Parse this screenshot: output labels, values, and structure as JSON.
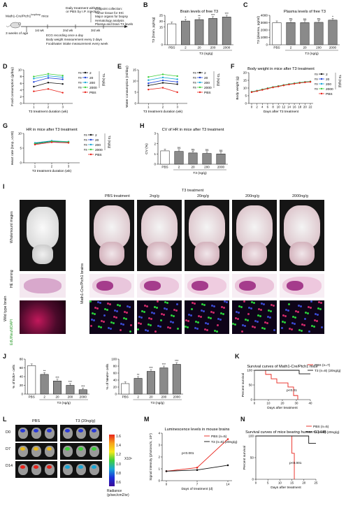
{
  "panels": {
    "A": {
      "letter": "A",
      "mice_label": "Math1-Cre/Ptch1",
      "mice_sup": "loxp/loxp",
      "mice_suffix": " mice",
      "age_label": "3 weeks of age",
      "treatment": [
        "Daily treatment with T3",
        "or PBS by I.P. injection"
      ],
      "weeks": [
        "1st wk",
        "2nd wk",
        "3rd wk"
      ],
      "endpoint_title": "Endpoint collection:",
      "endpoint_items": [
        "Tumor tissue for IHC",
        "Major organs for biopsy",
        "Hematology analysis",
        "Plasma and brain T3 levels"
      ],
      "notes": [
        "ECG recording once a day",
        "Body weight measurement every 2 days",
        "Food/water intake measurement every week"
      ]
    },
    "B": {
      "letter": "B",
      "title": "Brain levels of free T3"
    },
    "C": {
      "letter": "C",
      "title": "Plasma levels of free T3"
    },
    "D": {
      "letter": "D"
    },
    "E": {
      "letter": "E"
    },
    "F": {
      "letter": "F",
      "title": "Body weight in mice after T3 treatment"
    },
    "G": {
      "letter": "G",
      "title": "HR in mice after T3 treatment"
    },
    "H": {
      "letter": "H",
      "title": "CV of HR in mice after T3 treatment"
    },
    "I": {
      "letter": "I",
      "top_labels": [
        "PBS treatment",
        "2ng/g",
        "20ng/g",
        "200ng/g",
        "2000ng/g"
      ],
      "t3_header": "T3 treatment",
      "row_labels": [
        "Wholemount images",
        "HE staining",
        "EdU/NeuN/DAPI"
      ],
      "left_side": "Wild type brain",
      "right_side": "Math1-Cre/Ptch1 brains"
    },
    "J": {
      "letter": "J"
    },
    "K": {
      "letter": "K"
    },
    "L": {
      "letter": "L",
      "groups": [
        "PBS",
        "T3 (20ng/g)"
      ],
      "days": [
        "D0",
        "D7",
        "D14"
      ],
      "scale": [
        "1.6",
        "1.4",
        "1.2",
        "1.0",
        "0.8",
        "0.6"
      ],
      "scale_unit": "X10⁶",
      "radiance": [
        "Radiance",
        "(p/sec/cm2/sr)"
      ]
    },
    "M": {
      "letter": "M"
    },
    "N": {
      "letter": "N"
    }
  },
  "chart_data": [
    {
      "id": "B",
      "type": "bar",
      "title": "Brain levels of free T3",
      "ylabel": "T3 (brain, pg/mg)",
      "xlabel": "T3 (ng/g)",
      "categories": [
        "PBS",
        "2",
        "20",
        "200",
        "2000"
      ],
      "values": [
        17.8,
        20.2,
        21.4,
        22.4,
        23.6
      ],
      "sig": [
        "",
        "*",
        "**",
        "***",
        "***"
      ],
      "ylim": [
        0,
        25
      ],
      "yticks": [
        0,
        15,
        20,
        25
      ]
    },
    {
      "id": "C",
      "type": "bar",
      "title": "Plasma levels of free T3",
      "ylabel": "T3 (plasma, pg/ml)",
      "xlabel": "T3 (ng/g)",
      "categories": [
        "PBS",
        "2",
        "20",
        "200",
        "2000"
      ],
      "values": [
        3000,
        3030,
        3010,
        3050,
        3350
      ],
      "sig": [
        "",
        "ns",
        "ns",
        "ns",
        "*"
      ],
      "ylim": [
        0,
        4000
      ],
      "yticks": [
        0,
        1000,
        2000,
        3000,
        4000
      ]
    },
    {
      "id": "D",
      "type": "line",
      "ylabel": "Food consumption (g/day)",
      "xlabel": "T3 treatment duration (wk)",
      "x": [
        1,
        2,
        3
      ],
      "ylim": [
        0,
        10
      ],
      "yticks": [
        0,
        2,
        4,
        6,
        8,
        10
      ],
      "legend_title": "T3 (ng/g)",
      "series": [
        {
          "name": "2",
          "sig": "ns",
          "values": [
            5.0,
            6.2,
            5.8
          ]
        },
        {
          "name": "20",
          "sig": "ns",
          "values": [
            6.4,
            7.6,
            7.2
          ]
        },
        {
          "name": "200",
          "sig": "ns",
          "values": [
            7.4,
            8.2,
            7.8
          ]
        },
        {
          "name": "2000",
          "sig": "ns",
          "values": [
            8.0,
            8.8,
            8.3
          ]
        },
        {
          "name": "PBS",
          "sig": "",
          "values": [
            3.6,
            4.3,
            3.2
          ]
        }
      ]
    },
    {
      "id": "E",
      "type": "line",
      "ylabel": "Water consumption (ml/day)",
      "xlabel": "T3 treatment duration (wk)",
      "x": [
        1,
        2,
        3
      ],
      "ylim": [
        0,
        15
      ],
      "yticks": [
        0,
        5,
        10,
        15
      ],
      "legend_title": "T3 (ng/g)",
      "series": [
        {
          "name": "2",
          "sig": "ns",
          "values": [
            8.0,
            9.2,
            8.6
          ]
        },
        {
          "name": "20",
          "sig": "ns",
          "values": [
            9.0,
            10.3,
            9.6
          ]
        },
        {
          "name": "200",
          "sig": "ns",
          "values": [
            10.4,
            11.6,
            10.8
          ]
        },
        {
          "name": "2000",
          "sig": "ns",
          "values": [
            11.8,
            13.0,
            12.2
          ]
        },
        {
          "name": "PBS",
          "sig": "",
          "values": [
            6.2,
            7.0,
            5.0
          ]
        }
      ]
    },
    {
      "id": "F",
      "type": "line",
      "title": "Body weight in mice after T3 treatment",
      "ylabel": "Body weight (g)",
      "xlabel": "Days after T3 treatment",
      "x": [
        0,
        2,
        4,
        6,
        8,
        10,
        12,
        14,
        16,
        18,
        20,
        22
      ],
      "xticks": [
        0,
        2,
        4,
        6,
        8,
        10,
        12,
        14,
        16,
        18,
        20,
        22
      ],
      "ylim": [
        0,
        20
      ],
      "yticks": [
        0,
        5,
        10,
        15,
        20
      ],
      "legend_title": "T3 (ng/g)",
      "series": [
        {
          "name": "2",
          "sig": "ns",
          "values": [
            7.5,
            8.2,
            9.0,
            9.8,
            10.6,
            11.2,
            11.9,
            12.5,
            13.0,
            13.5,
            13.9,
            14.2
          ]
        },
        {
          "name": "20",
          "sig": "ns",
          "values": [
            7.4,
            8.1,
            8.9,
            9.7,
            10.5,
            11.1,
            11.8,
            12.4,
            12.9,
            13.4,
            13.8,
            14.1
          ]
        },
        {
          "name": "200",
          "sig": "ns",
          "values": [
            7.6,
            8.3,
            9.1,
            9.9,
            10.7,
            11.3,
            12.0,
            12.6,
            13.1,
            13.6,
            14.0,
            14.3
          ]
        },
        {
          "name": "2000",
          "sig": "ns",
          "values": [
            7.5,
            8.2,
            9.0,
            9.8,
            10.6,
            11.2,
            11.9,
            12.5,
            13.0,
            13.5,
            13.9,
            14.2
          ]
        },
        {
          "name": "PBS",
          "sig": "",
          "values": [
            7.3,
            8.0,
            8.8,
            9.6,
            10.4,
            11.0,
            11.7,
            12.3,
            12.8,
            13.3,
            13.7,
            14.0
          ]
        }
      ]
    },
    {
      "id": "G",
      "type": "line",
      "title": "HR in mice after T3 treatment",
      "ylabel": "Heart rate (bmp, x100)",
      "xlabel": "T3 treatment duration (wk)",
      "x": [
        1,
        2,
        3
      ],
      "ylim": [
        0,
        10
      ],
      "yticks": [
        0,
        5,
        10
      ],
      "legend_title": "T3 (ng/g)",
      "series": [
        {
          "name": "2",
          "sig": "ns",
          "values": [
            6.6,
            7.4,
            7.1
          ]
        },
        {
          "name": "20",
          "sig": "ns",
          "values": [
            6.4,
            7.2,
            7.0
          ]
        },
        {
          "name": "200",
          "sig": "ns",
          "values": [
            6.8,
            7.5,
            7.2
          ]
        },
        {
          "name": "2000",
          "sig": "ns",
          "values": [
            6.5,
            7.3,
            7.1
          ]
        },
        {
          "name": "PBS",
          "sig": "",
          "values": [
            6.2,
            7.0,
            6.8
          ]
        }
      ]
    },
    {
      "id": "H",
      "type": "bar",
      "title": "CV of HR in mice after T3 treatment",
      "ylabel": "CV (%)",
      "xlabel": "T3 (ng/g)",
      "categories": [
        "PBS",
        "2",
        "20",
        "200",
        "2000"
      ],
      "values": [
        1.3,
        1.25,
        1.1,
        1.05,
        1.0
      ],
      "sig": [
        "",
        "ns",
        "ns",
        "ns",
        "ns"
      ],
      "ylim": [
        0,
        3
      ],
      "yticks": [
        0,
        1,
        2,
        3
      ]
    },
    {
      "id": "J1",
      "type": "bar",
      "ylabel": "% of EdU+ cells",
      "xlabel": "T3 (ng/g)",
      "categories": [
        "PBS",
        "2",
        "20",
        "200",
        "2000"
      ],
      "values": [
        65,
        45,
        30,
        20,
        10
      ],
      "sig": [
        "",
        "**",
        "***",
        "***",
        "***"
      ],
      "ylim": [
        0,
        80
      ],
      "yticks": [
        0,
        20,
        40,
        60,
        80
      ]
    },
    {
      "id": "J2",
      "type": "bar",
      "ylabel": "% of NeuN+ cells",
      "xlabel": "T3 (ng/g)",
      "categories": [
        "PBS",
        "2",
        "20",
        "200",
        "2000"
      ],
      "values": [
        30,
        45,
        65,
        75,
        85
      ],
      "sig": [
        "",
        "**",
        "***",
        "***",
        "***"
      ],
      "ylim": [
        0,
        100
      ],
      "yticks": [
        0,
        20,
        40,
        60,
        80,
        100
      ]
    },
    {
      "id": "K",
      "type": "line",
      "title": "Survival curves of Math1-Cre/Ptch1 mice",
      "ylabel": "Percent survival",
      "xlabel": "Days after treatment",
      "xlim": [
        0,
        40
      ],
      "xticks": [
        0,
        10,
        20,
        30,
        40
      ],
      "ylim": [
        0,
        100
      ],
      "yticks": [
        0,
        50,
        100
      ],
      "annotation": "p<0.01",
      "series": [
        {
          "name": "PBS (n=7)",
          "x": [
            0,
            8,
            8,
            12,
            12,
            16,
            16,
            24,
            24,
            28,
            28,
            31,
            31
          ],
          "values": [
            100,
            100,
            86,
            86,
            71,
            71,
            57,
            57,
            43,
            43,
            14,
            14,
            0
          ]
        },
        {
          "name": "T3 (n=8) (20ng/g)",
          "x": [
            0,
            32,
            32,
            40
          ],
          "values": [
            100,
            100,
            88,
            88
          ]
        }
      ]
    },
    {
      "id": "M",
      "type": "line",
      "title": "Luminescence levels in mouse brains",
      "ylabel": "Signal intensity (photons/s, 10⁶)",
      "xlabel": "Days of treatment (d)",
      "x": [
        0,
        7,
        14
      ],
      "xticks": [
        0,
        7,
        14
      ],
      "ylim": [
        0,
        4
      ],
      "yticks": [
        0,
        1,
        2,
        3,
        4
      ],
      "annotation": "p<0.001",
      "series": [
        {
          "name": "PBS (n=5)",
          "values": [
            0.8,
            1.1,
            3.5
          ]
        },
        {
          "name": "T3 (n=6) (20ng/g)",
          "values": [
            0.8,
            0.9,
            1.3
          ]
        }
      ]
    },
    {
      "id": "N",
      "type": "line",
      "title": "Survival curves of mice bearing human G3-MB",
      "ylabel": "Percent survival",
      "xlabel": "Days after treatment",
      "xlim": [
        0,
        25
      ],
      "xticks": [
        0,
        5,
        10,
        15,
        20,
        25
      ],
      "ylim": [
        0,
        100
      ],
      "yticks": [
        0,
        50,
        100
      ],
      "annotation": "p<0.001",
      "series": [
        {
          "name": "PBS (n=5)",
          "x": [
            0,
            15,
            15,
            16,
            16
          ],
          "values": [
            100,
            100,
            60,
            60,
            0
          ]
        },
        {
          "name": "T3 (n=6) (20ng/g)",
          "x": [
            0,
            22,
            22,
            25
          ],
          "values": [
            100,
            100,
            83,
            83
          ]
        }
      ]
    }
  ],
  "colors": {
    "c2": "#111111",
    "c20": "#1c3fd8",
    "c200": "#18a6d6",
    "c2000": "#3fcf3a",
    "cPBS": "#e8231b",
    "bar_pbs": "#ffffff",
    "bar_grey": "#8a8a8a"
  }
}
